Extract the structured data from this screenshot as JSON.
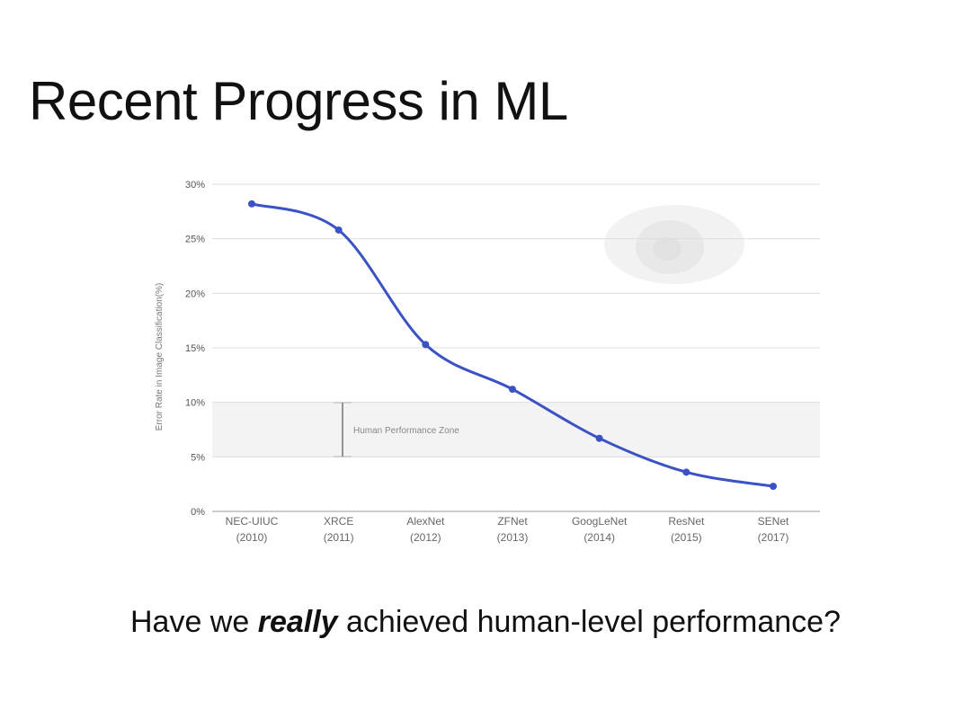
{
  "slide": {
    "title": "Recent Progress in ML",
    "question_pre": "Have we ",
    "question_emph": "really",
    "question_post": " achieved human-level performance?"
  },
  "chart_data": {
    "type": "line",
    "title": "",
    "xlabel": "",
    "ylabel": "Error Rate in Image Classification(%)",
    "categories": [
      "NEC-UIUC",
      "XRCE",
      "AlexNet",
      "ZFNet",
      "GoogLeNet",
      "ResNet",
      "SENet"
    ],
    "years": [
      "(2010)",
      "(2011)",
      "(2012)",
      "(2013)",
      "(2014)",
      "(2015)",
      "(2017)"
    ],
    "values": [
      28.2,
      25.8,
      15.3,
      11.2,
      6.7,
      3.6,
      2.3
    ],
    "ylim": [
      0,
      30
    ],
    "yticks": [
      0,
      5,
      10,
      15,
      20,
      25,
      30
    ],
    "ytick_labels": [
      "0%",
      "5%",
      "10%",
      "15%",
      "20%",
      "25%",
      "30%"
    ],
    "grid": true,
    "legend": "none",
    "annotation": {
      "label": "Human Performance Zone",
      "range": [
        5,
        10
      ]
    },
    "line_color": "#3b52c4"
  }
}
